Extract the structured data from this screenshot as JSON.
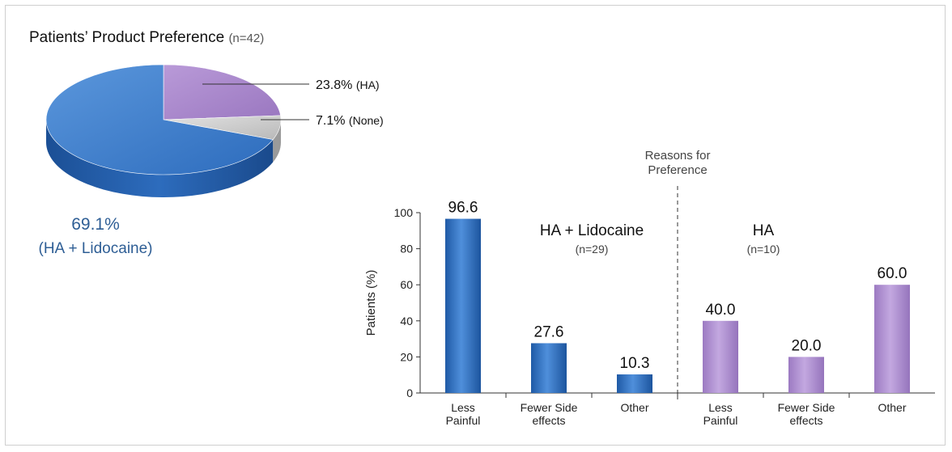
{
  "title": "Patients’ Product Preference",
  "title_n": "(n=42)",
  "chart_data": [
    {
      "type": "pie",
      "slices": [
        {
          "name": "HA + Lidocaine",
          "label_value": "69.1%",
          "label_name": "(HA + Lidocaine)",
          "value": 69.1,
          "color": "#2f6fc0"
        },
        {
          "name": "HA",
          "label_value": "23.8%",
          "label_name": "(HA)",
          "value": 23.8,
          "color": "#a582c8"
        },
        {
          "name": "None",
          "label_value": "7.1%",
          "label_name": "(None)",
          "value": 7.1,
          "color": "#c8c8c8"
        }
      ]
    },
    {
      "type": "bar",
      "ylabel": "Patients (%)",
      "ylim": [
        0,
        100
      ],
      "yticks": [
        0,
        20,
        40,
        60,
        80,
        100
      ],
      "divider_label": [
        "Reasons for",
        "Preference"
      ],
      "groups": [
        {
          "name": "HA + Lidocaine",
          "n": "(n=29)",
          "color": "#2f6fc0",
          "bars": [
            {
              "category": [
                "Less",
                "Painful"
              ],
              "value": 96.6,
              "label": "96.6"
            },
            {
              "category": [
                "Fewer Side",
                "effects"
              ],
              "value": 27.6,
              "label": "27.6"
            },
            {
              "category": [
                "Other"
              ],
              "value": 10.3,
              "label": "10.3"
            }
          ]
        },
        {
          "name": "HA",
          "n": "(n=10)",
          "color": "#a582c8",
          "bars": [
            {
              "category": [
                "Less",
                "Painful"
              ],
              "value": 40.0,
              "label": "40.0"
            },
            {
              "category": [
                "Fewer Side",
                "effects"
              ],
              "value": 20.0,
              "label": "20.0"
            },
            {
              "category": [
                "Other"
              ],
              "value": 60.0,
              "label": "60.0"
            }
          ]
        }
      ]
    }
  ]
}
